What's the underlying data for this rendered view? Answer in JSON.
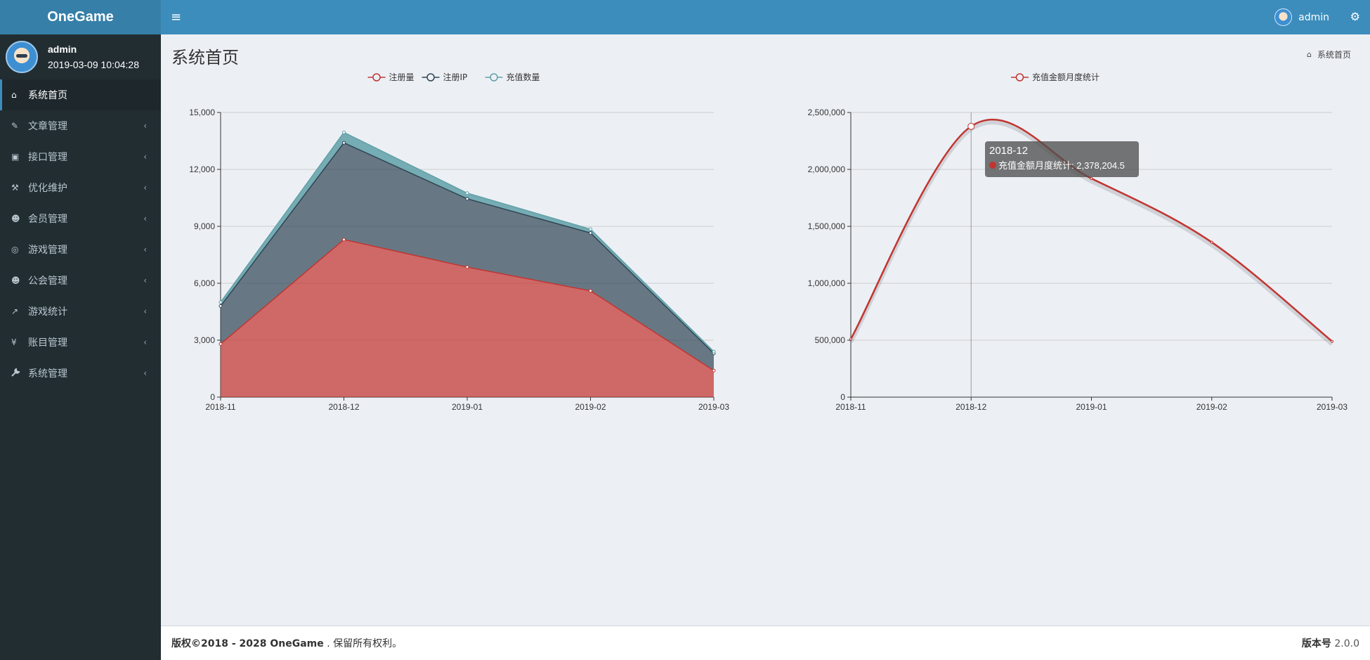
{
  "app": {
    "logo": "OneGame"
  },
  "user": {
    "name": "admin",
    "time": "2019-03-09 10:04:28"
  },
  "sidebar": {
    "items": [
      {
        "label": "系统首页",
        "icon": "home-icon",
        "glyph": "⌂"
      },
      {
        "label": "文章管理",
        "icon": "edit-icon",
        "glyph": "✎"
      },
      {
        "label": "接口管理",
        "icon": "book-icon",
        "glyph": "▣"
      },
      {
        "label": "优化维护",
        "icon": "gavel-icon",
        "glyph": "⚒"
      },
      {
        "label": "会员管理",
        "icon": "users-icon",
        "glyph": "☻"
      },
      {
        "label": "游戏管理",
        "icon": "gamepad-icon",
        "glyph": "◎"
      },
      {
        "label": "公会管理",
        "icon": "group-icon",
        "glyph": "☻"
      },
      {
        "label": "游戏统计",
        "icon": "line-chart-icon",
        "glyph": "↗"
      },
      {
        "label": "账目管理",
        "icon": "yen-icon",
        "glyph": "¥"
      },
      {
        "label": "系统管理",
        "icon": "wrench-icon",
        "glyph": "🔧"
      }
    ],
    "chevron": "‹"
  },
  "header": {
    "user_name": "admin",
    "toggle": "≡",
    "gears": "⚙"
  },
  "page": {
    "title": "系统首页",
    "breadcrumb": "系统首页",
    "breadcrumb_icon": "⌂"
  },
  "tooltip": {
    "title": "2018-12",
    "text": "充值金额月度统计: 2,378,204.5"
  },
  "footer": {
    "copyright_bold": "版权©2018 - 2028 OneGame",
    "copyright_rest": ". 保留所有权利。",
    "version_label": "版本号",
    "version": "2.0.0"
  },
  "chart_data": [
    {
      "type": "area",
      "stacked": true,
      "categories": [
        "2018-11",
        "2018-12",
        "2019-01",
        "2019-02",
        "2019-03"
      ],
      "series": [
        {
          "name": "注册量",
          "values": [
            2800,
            8300,
            6850,
            5600,
            1400
          ],
          "color": "#c23531"
        },
        {
          "name": "注册IP",
          "values": [
            2000,
            5100,
            3600,
            3050,
            900
          ],
          "color": "#2f4554"
        },
        {
          "name": "充值数量",
          "values": [
            200,
            550,
            300,
            200,
            100
          ],
          "color": "#61a0a8"
        }
      ],
      "ylim": [
        0,
        15000
      ],
      "yticks": [
        0,
        3000,
        6000,
        9000,
        12000,
        15000
      ],
      "legend": "top-center",
      "grid": true
    },
    {
      "type": "line",
      "categories": [
        "2018-11",
        "2018-12",
        "2019-01",
        "2019-02",
        "2019-03"
      ],
      "series": [
        {
          "name": "充值金额月度统计",
          "values": [
            510000,
            2378204.5,
            1920000,
            1360000,
            490000
          ],
          "color": "#c23531"
        }
      ],
      "ylim": [
        0,
        2500000
      ],
      "yticks": [
        0,
        500000,
        1000000,
        1500000,
        2000000,
        2500000
      ],
      "legend": "top-center",
      "grid": true
    }
  ]
}
